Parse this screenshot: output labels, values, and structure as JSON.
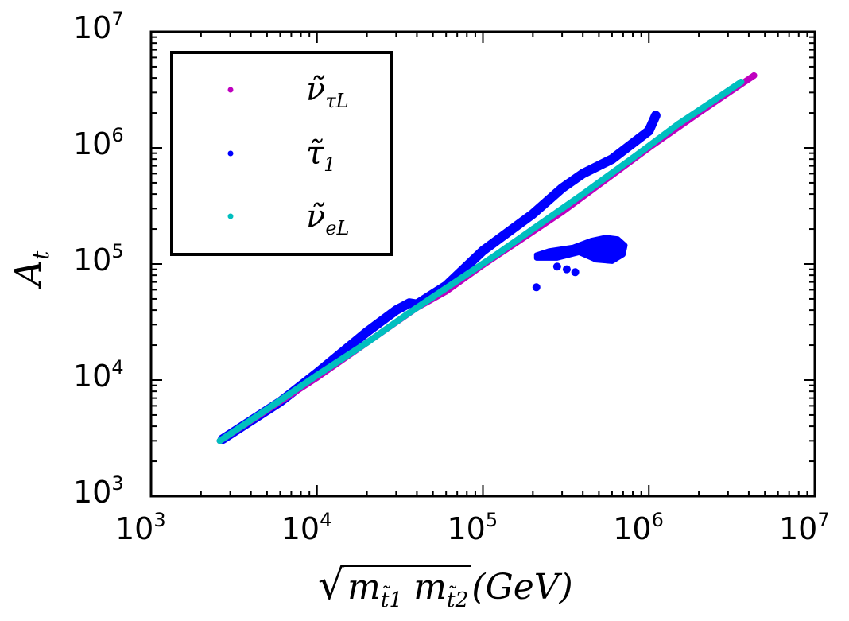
{
  "chart_data": {
    "type": "scatter",
    "xlabel": "√(m_t̃1 m_t̃2)(GeV)",
    "xlabel_parts": {
      "radical": "m",
      "sub1": "t̃1",
      "sub2": "t̃2",
      "unit": "(GeV)"
    },
    "ylabel": "A_t",
    "ylabel_parts": {
      "main": "A",
      "sub": "t"
    },
    "xscale": "log",
    "yscale": "log",
    "xlim": [
      1000,
      10000000
    ],
    "ylim": [
      1000,
      10000000
    ],
    "grid": false,
    "legend_placement": "top-left",
    "x_ticks": [
      {
        "base": "10",
        "exp": "3"
      },
      {
        "base": "10",
        "exp": "4"
      },
      {
        "base": "10",
        "exp": "5"
      },
      {
        "base": "10",
        "exp": "6"
      },
      {
        "base": "10",
        "exp": "7"
      }
    ],
    "y_ticks": [
      {
        "base": "10",
        "exp": "3"
      },
      {
        "base": "10",
        "exp": "4"
      },
      {
        "base": "10",
        "exp": "5"
      },
      {
        "base": "10",
        "exp": "6"
      },
      {
        "base": "10",
        "exp": "7"
      }
    ],
    "series": [
      {
        "name": "ν̃_τL",
        "label_main": "ν̃",
        "label_sub": "τL",
        "color": "#bf00bf",
        "points": [
          [
            2600,
            3000
          ],
          [
            10000,
            10500
          ],
          [
            40000,
            42000
          ],
          [
            60000,
            58000
          ],
          [
            100000,
            98000
          ],
          [
            300000,
            280000
          ],
          [
            1000000,
            1000000
          ],
          [
            2000000,
            2000000
          ],
          [
            4300000,
            4200000
          ]
        ]
      },
      {
        "name": "τ̃_1",
        "label_main": "τ̃",
        "label_sub": "1",
        "color": "#0000ff",
        "points": [
          [
            2700,
            3100
          ],
          [
            6000,
            6500
          ],
          [
            10000,
            11500
          ],
          [
            20000,
            26000
          ],
          [
            30000,
            40000
          ],
          [
            36000,
            46000
          ],
          [
            40000,
            45000
          ],
          [
            60000,
            65000
          ],
          [
            100000,
            130000
          ],
          [
            200000,
            270000
          ],
          [
            300000,
            450000
          ],
          [
            400000,
            600000
          ],
          [
            600000,
            800000
          ],
          [
            1000000,
            1400000
          ],
          [
            1100000,
            1900000
          ]
        ],
        "region": [
          [
            210000,
            120000
          ],
          [
            250000,
            130000
          ],
          [
            350000,
            140000
          ],
          [
            450000,
            160000
          ],
          [
            550000,
            170000
          ],
          [
            650000,
            165000
          ],
          [
            720000,
            145000
          ],
          [
            700000,
            120000
          ],
          [
            600000,
            105000
          ],
          [
            480000,
            108000
          ],
          [
            380000,
            125000
          ],
          [
            280000,
            112000
          ],
          [
            210000,
            112000
          ]
        ],
        "extra_points": [
          [
            280000,
            95000
          ],
          [
            320000,
            90000
          ],
          [
            360000,
            85000
          ],
          [
            210000,
            63000
          ]
        ]
      },
      {
        "name": "ν̃_eL",
        "label_main": "ν̃",
        "label_sub": "eL",
        "color": "#00bfbf",
        "points": [
          [
            2600,
            3000
          ],
          [
            5000,
            5600
          ],
          [
            10000,
            11000
          ],
          [
            20000,
            21000
          ],
          [
            35000,
            37000
          ],
          [
            120000,
            120000
          ],
          [
            200000,
            200000
          ],
          [
            400000,
            400000
          ],
          [
            800000,
            820000
          ],
          [
            1500000,
            1600000
          ],
          [
            2500000,
            2600000
          ],
          [
            3600000,
            3700000
          ]
        ]
      }
    ]
  }
}
